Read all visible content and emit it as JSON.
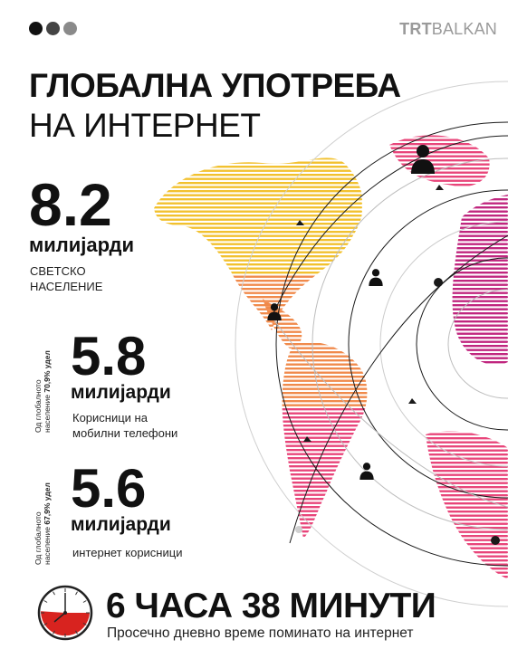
{
  "brand": {
    "prefix": "TRT",
    "suffix": "BALKAN"
  },
  "title": {
    "line1": "ГЛОБАЛНА УПОТРЕБА",
    "line2": "НА ИНТЕРНЕТ"
  },
  "stats": [
    {
      "value": "8.2",
      "unit": "милијарди",
      "desc_line1": "СВЕТСКО",
      "desc_line2": "НАСЕЛЕНИЕ"
    },
    {
      "value": "5.8",
      "unit": "милијарди",
      "desc_line1": "Корисници на",
      "desc_line2": "мобилни телефони",
      "share_line1": "Од глобалното",
      "share_line2_text": "население ",
      "share_line2_bold": "70,9% удел"
    },
    {
      "value": "5.6",
      "unit": "милијарди",
      "desc_line1": "интернет корисници",
      "share_line1": "Од глобалното",
      "share_line2_text": "население ",
      "share_line2_bold": "67,9% удел"
    }
  ],
  "screen_time": {
    "headline": "6 ЧАСА 38 МИНУТИ",
    "caption": "Просечно дневно време поминато на интернет",
    "fraction_of_hour": 0.63
  },
  "colors": {
    "dot1": "#111111",
    "dot2": "#444444",
    "dot3": "#8a8a8a",
    "yellow": "#f2c12e",
    "orange": "#f08a4b",
    "pink": "#e8457a",
    "magenta": "#c0267f",
    "clock_red": "#d8231f"
  },
  "icons": [
    "user-icon",
    "clock-icon"
  ]
}
